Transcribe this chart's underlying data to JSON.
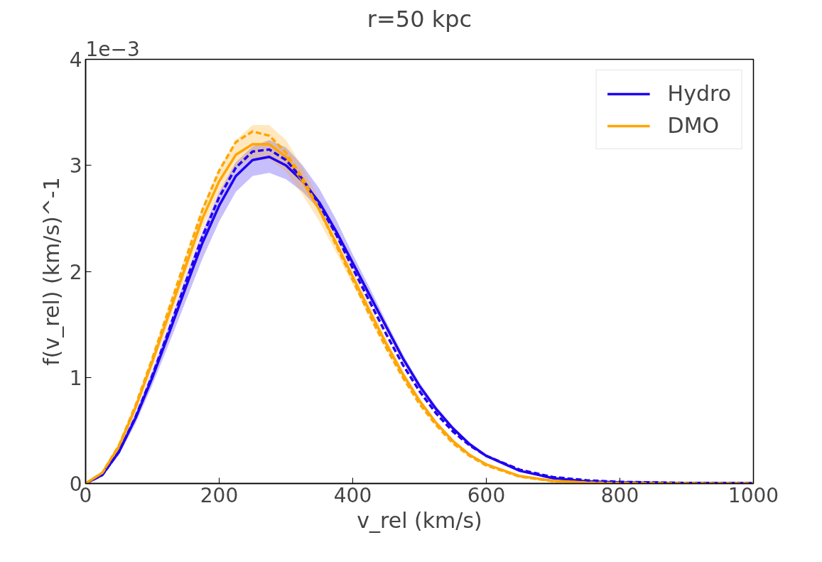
{
  "chart_data": {
    "type": "line",
    "title": "r=50 kpc",
    "xlabel": "v_rel (km/s)",
    "ylabel": "f(v_rel) (km/s)^-1",
    "annotations": [
      "1e−3"
    ],
    "x": [
      0,
      25,
      50,
      75,
      100,
      125,
      150,
      175,
      200,
      225,
      250,
      275,
      300,
      325,
      350,
      375,
      400,
      425,
      450,
      475,
      500,
      525,
      550,
      575,
      600,
      650,
      700,
      750,
      800,
      900,
      1000
    ],
    "xlim": [
      0,
      1000
    ],
    "xticks": [
      0,
      200,
      400,
      600,
      800,
      1000
    ],
    "ylim": [
      0,
      4
    ],
    "yticks": [
      0,
      1,
      2,
      3,
      4
    ],
    "grid": false,
    "legend": "top right",
    "marker": "none",
    "series": [
      {
        "name": "Hydro",
        "color": "#1f00f0",
        "line_style": "solid",
        "values": [
          0,
          0.08,
          0.3,
          0.62,
          1.0,
          1.42,
          1.85,
          2.27,
          2.62,
          2.9,
          3.05,
          3.08,
          3.0,
          2.85,
          2.65,
          2.38,
          2.08,
          1.78,
          1.48,
          1.18,
          0.92,
          0.7,
          0.52,
          0.37,
          0.26,
          0.12,
          0.05,
          0.02,
          0.01,
          0.003,
          0.001
        ],
        "lower": [
          0,
          0.07,
          0.27,
          0.57,
          0.93,
          1.32,
          1.72,
          2.12,
          2.47,
          2.75,
          2.9,
          2.93,
          2.87,
          2.75,
          2.58,
          2.33,
          2.03,
          1.74,
          1.45,
          1.15,
          0.89,
          0.68,
          0.5,
          0.36,
          0.25,
          0.11,
          0.045,
          0.018,
          0.008,
          0.002,
          0.001
        ],
        "upper": [
          0,
          0.09,
          0.33,
          0.67,
          1.07,
          1.5,
          1.95,
          2.38,
          2.75,
          3.03,
          3.18,
          3.24,
          3.17,
          3.0,
          2.78,
          2.49,
          2.16,
          1.85,
          1.53,
          1.22,
          0.95,
          0.73,
          0.54,
          0.39,
          0.27,
          0.13,
          0.055,
          0.022,
          0.012,
          0.004,
          0.001
        ]
      },
      {
        "name": "DMO",
        "color": "#ffa500",
        "line_style": "solid",
        "values": [
          0,
          0.1,
          0.35,
          0.72,
          1.15,
          1.6,
          2.05,
          2.5,
          2.85,
          3.1,
          3.2,
          3.2,
          3.08,
          2.85,
          2.58,
          2.27,
          1.95,
          1.63,
          1.32,
          1.03,
          0.78,
          0.57,
          0.4,
          0.27,
          0.18,
          0.07,
          0.025,
          0.01,
          0.004,
          0.001,
          0
        ],
        "lower": [
          0,
          0.09,
          0.32,
          0.68,
          1.09,
          1.52,
          1.96,
          2.4,
          2.74,
          2.98,
          3.07,
          3.06,
          2.94,
          2.72,
          2.47,
          2.18,
          1.88,
          1.57,
          1.27,
          0.99,
          0.75,
          0.55,
          0.38,
          0.26,
          0.17,
          0.065,
          0.022,
          0.008,
          0.003,
          0.001,
          0
        ],
        "upper": [
          0,
          0.11,
          0.38,
          0.76,
          1.21,
          1.68,
          2.15,
          2.61,
          2.97,
          3.24,
          3.38,
          3.38,
          3.24,
          2.98,
          2.68,
          2.35,
          2.02,
          1.69,
          1.37,
          1.07,
          0.81,
          0.59,
          0.42,
          0.28,
          0.19,
          0.075,
          0.028,
          0.012,
          0.005,
          0.001,
          0
        ]
      },
      {
        "color": "#1f00f0",
        "line_style": "dashed",
        "values": [
          0,
          0.08,
          0.3,
          0.63,
          1.02,
          1.45,
          1.9,
          2.33,
          2.7,
          2.98,
          3.13,
          3.15,
          3.05,
          2.87,
          2.63,
          2.35,
          2.03,
          1.72,
          1.41,
          1.12,
          0.87,
          0.66,
          0.49,
          0.36,
          0.26,
          0.13,
          0.06,
          0.03,
          0.015,
          0.005,
          0.002
        ]
      },
      {
        "color": "#ffa500",
        "line_style": "dashed",
        "values": [
          0,
          0.1,
          0.36,
          0.74,
          1.18,
          1.65,
          2.12,
          2.58,
          2.95,
          3.22,
          3.32,
          3.28,
          3.12,
          2.88,
          2.58,
          2.25,
          1.92,
          1.59,
          1.28,
          1.0,
          0.75,
          0.55,
          0.38,
          0.26,
          0.17,
          0.065,
          0.022,
          0.008,
          0.003,
          0.001,
          0
        ]
      }
    ]
  }
}
